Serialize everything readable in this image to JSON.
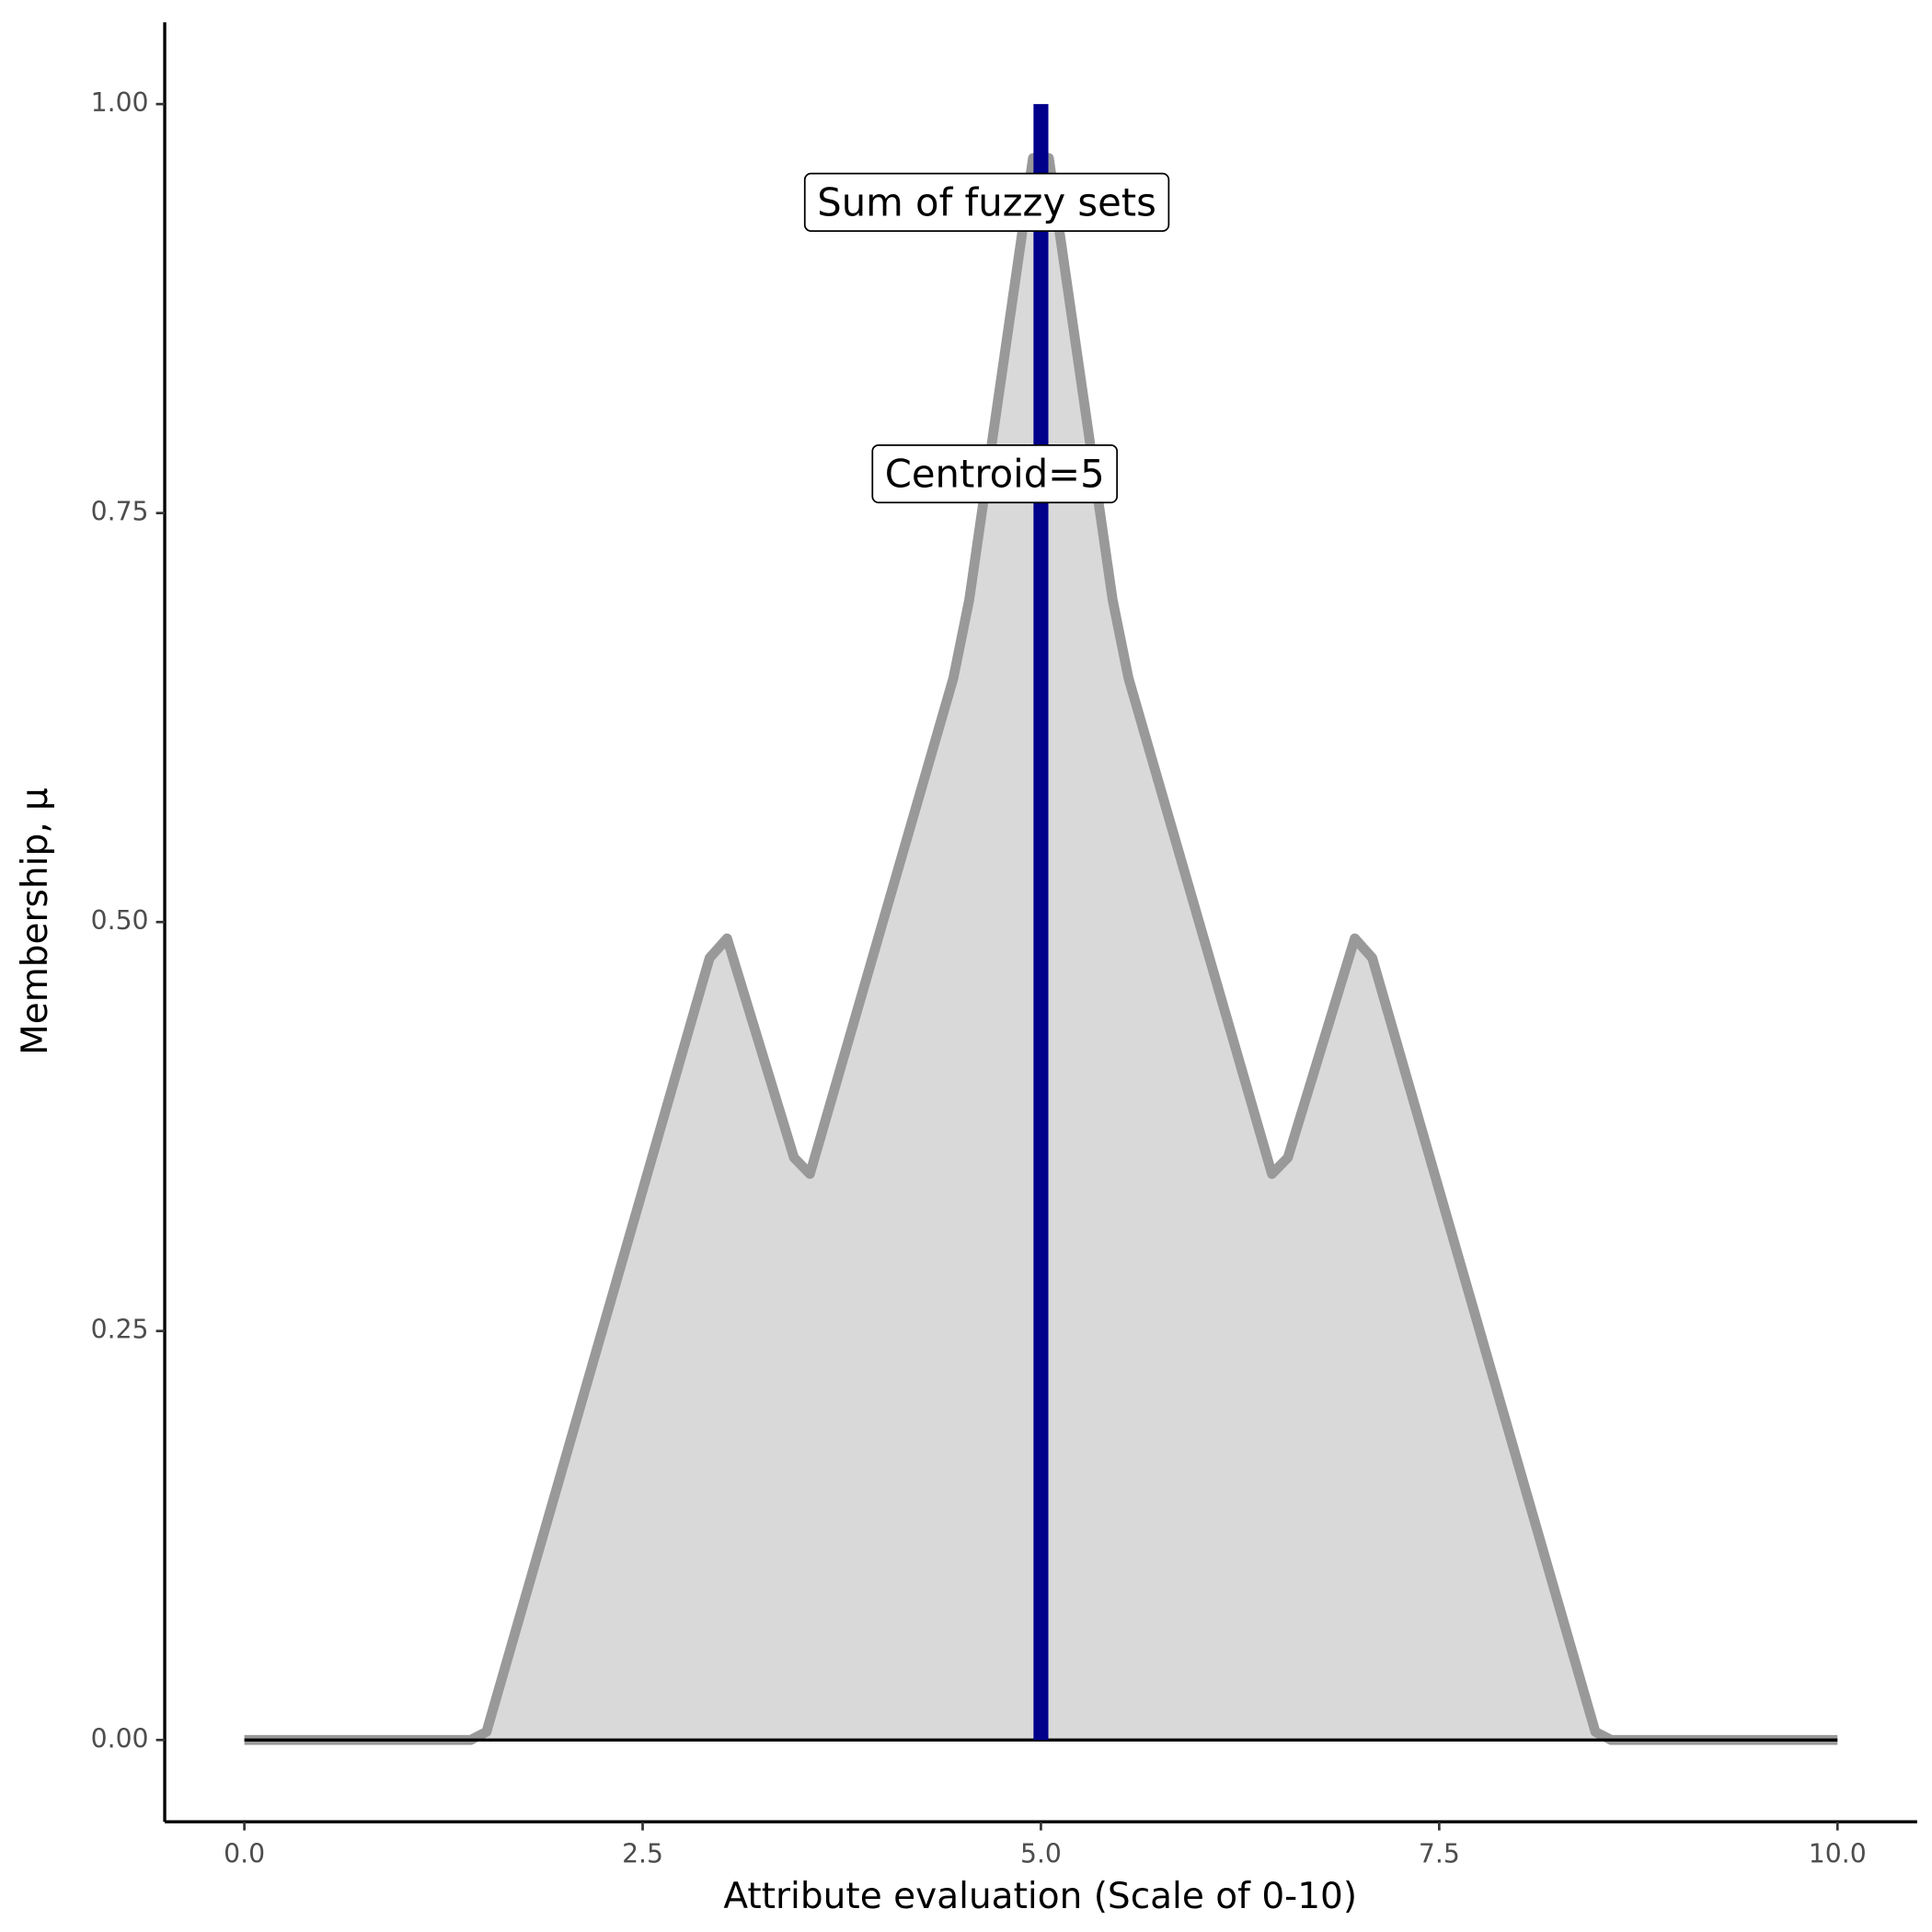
{
  "chart_data": {
    "type": "area",
    "xlabel": "Attribute evaluation (Scale of 0-10)",
    "ylabel": "Membership, μ",
    "xlim": [
      -0.5,
      10.5
    ],
    "ylim": [
      -0.05,
      1.05
    ],
    "xticks": [
      {
        "value": 0,
        "label": "0.0"
      },
      2.5,
      {
        "value": 5,
        "label": "5.0"
      },
      7.5,
      {
        "value": 10,
        "label": "10.0"
      }
    ],
    "yticks": [
      {
        "value": 0,
        "label": "0.00"
      },
      {
        "value": 0.25,
        "label": "0.25"
      },
      {
        "value": 0.5,
        "label": "0.50"
      },
      {
        "value": 0.75,
        "label": "0.75"
      },
      {
        "value": 1,
        "label": "1.00"
      }
    ],
    "series": [
      {
        "name": "Sum of fuzzy sets",
        "color": "#999999",
        "fill": "#d9d9d9",
        "x": [
          0,
          1.42,
          1.52,
          2.92,
          3.03,
          3.45,
          3.55,
          4.45,
          4.55,
          4.95,
          5.05,
          5.45,
          5.55,
          6.45,
          6.55,
          6.97,
          7.08,
          8.48,
          8.58,
          10
        ],
        "values": [
          0,
          0,
          0.005,
          0.478,
          0.49,
          0.356,
          0.346,
          0.649,
          0.697,
          0.967,
          0.967,
          0.697,
          0.649,
          0.346,
          0.356,
          0.49,
          0.478,
          0.005,
          0,
          0
        ],
        "label_x": 4.66,
        "label_y": 0.938
      }
    ],
    "hline": 0,
    "centroid": {
      "value": 5,
      "label": "Centroid=5",
      "color": "#00008b",
      "ymin": 0,
      "ymax": 1,
      "label_x": 4.71,
      "label_y": 0.772
    }
  }
}
